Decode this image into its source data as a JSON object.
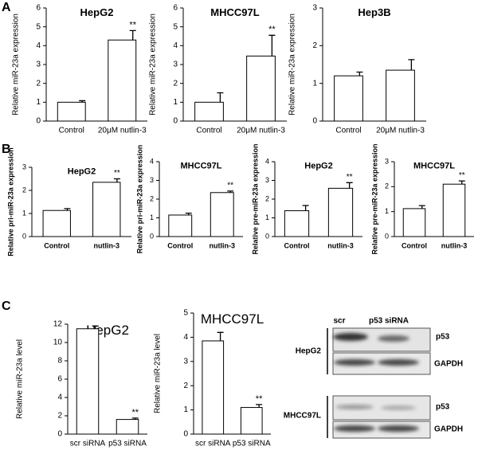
{
  "panel_labels": [
    "A",
    "B",
    "C"
  ],
  "chart_data": [
    {
      "type": "bar",
      "title": "HepG2",
      "ylabel": "Relative miR-23a expression",
      "categories": [
        "Control",
        "20μM nutlin-3"
      ],
      "values": [
        1.0,
        4.3
      ],
      "errors": [
        0.08,
        0.5
      ],
      "significance": [
        null,
        "**"
      ],
      "ylim": [
        0,
        6
      ],
      "yticks": [
        0,
        1,
        2,
        3,
        4,
        5,
        6
      ],
      "color": "#ffffff"
    },
    {
      "type": "bar",
      "title": "MHCC97L",
      "ylabel": "Relative miR-23a expression",
      "categories": [
        "Control",
        "20μM nutlin-3"
      ],
      "values": [
        1.0,
        3.45
      ],
      "errors": [
        0.5,
        1.1
      ],
      "significance": [
        null,
        "**"
      ],
      "ylim": [
        0,
        6
      ],
      "yticks": [
        0,
        1,
        2,
        3,
        4,
        5,
        6
      ],
      "color": "#ffffff"
    },
    {
      "type": "bar",
      "title": "Hep3B",
      "ylabel": "Relative miR-23a expression",
      "categories": [
        "Control",
        "20μM nutlin-3"
      ],
      "values": [
        1.2,
        1.35
      ],
      "errors": [
        0.1,
        0.28
      ],
      "significance": [
        null,
        null
      ],
      "ylim": [
        0,
        3
      ],
      "yticks": [
        0,
        1,
        2,
        3
      ],
      "color": "#ffffff"
    },
    {
      "type": "bar",
      "title": "HepG2",
      "ylabel": "Relative pri-miR-23a expression",
      "categories": [
        "Control",
        "nutlin-3"
      ],
      "values": [
        1.13,
        2.35
      ],
      "errors": [
        0.08,
        0.15
      ],
      "significance": [
        null,
        "**"
      ],
      "ylim": [
        0,
        3
      ],
      "yticks": [
        0,
        1,
        2,
        3
      ],
      "color": "#ffffff"
    },
    {
      "type": "bar",
      "title": "MHCC97L",
      "ylabel": "Relative pri-miR-23a expression",
      "categories": [
        "Control",
        "nutlin-3"
      ],
      "values": [
        1.15,
        2.35
      ],
      "errors": [
        0.1,
        0.08
      ],
      "significance": [
        null,
        "**"
      ],
      "ylim": [
        0,
        4
      ],
      "yticks": [
        0,
        1,
        2,
        3,
        4
      ],
      "color": "#ffffff"
    },
    {
      "type": "bar",
      "title": "HepG2",
      "ylabel": "Relative pre-miR-23a expression",
      "categories": [
        "Control",
        "nutlin-3"
      ],
      "values": [
        1.38,
        2.58
      ],
      "errors": [
        0.28,
        0.3
      ],
      "significance": [
        null,
        "**"
      ],
      "ylim": [
        0,
        4
      ],
      "yticks": [
        0,
        1,
        2,
        3,
        4
      ],
      "color": "#ffffff"
    },
    {
      "type": "bar",
      "title": "MHCC97L",
      "ylabel": "Relative pre-miR-23a expression",
      "categories": [
        "Control",
        "nutlin-3"
      ],
      "values": [
        1.12,
        2.1
      ],
      "errors": [
        0.12,
        0.13
      ],
      "significance": [
        null,
        "**"
      ],
      "ylim": [
        0,
        3
      ],
      "yticks": [
        0,
        1,
        2,
        3
      ],
      "color": "#ffffff"
    },
    {
      "type": "bar",
      "title": "HepG2",
      "ylabel": "Relative miR-23a level",
      "categories": [
        "scr siRNA",
        "p53 siRNA"
      ],
      "values": [
        11.5,
        1.6
      ],
      "errors": [
        0.3,
        0.15
      ],
      "significance": [
        null,
        "**"
      ],
      "ylim": [
        0,
        12
      ],
      "yticks": [
        0,
        2,
        4,
        6,
        8,
        10,
        12
      ],
      "color": "#ffffff"
    },
    {
      "type": "bar",
      "title": "MHCC97L",
      "ylabel": "Relative miR-23a level",
      "categories": [
        "scr siRNA",
        "p53 siRNA"
      ],
      "values": [
        3.85,
        1.1
      ],
      "errors": [
        0.35,
        0.12
      ],
      "significance": [
        null,
        "**"
      ],
      "ylim": [
        0,
        5
      ],
      "yticks": [
        0,
        1,
        2,
        3,
        4,
        5
      ],
      "color": "#ffffff"
    }
  ],
  "blot": {
    "lanes": [
      "scr",
      "p53 siRNA"
    ],
    "cell_lines": [
      "HepG2",
      "MHCC97L"
    ],
    "rows": [
      "p53",
      "GAPDH",
      "p53",
      "GAPDH"
    ]
  }
}
